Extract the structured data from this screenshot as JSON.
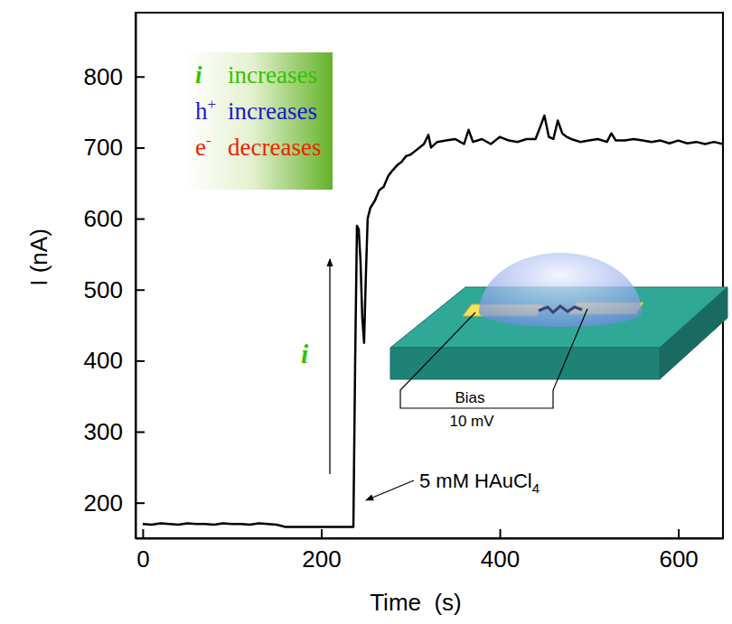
{
  "chart_data": {
    "type": "line",
    "xlabel": "Time  (s)",
    "ylabel": "I (nA)",
    "xlim": [
      -8,
      650
    ],
    "ylim": [
      150,
      890
    ],
    "xticks": [
      0,
      200,
      400,
      600
    ],
    "yticks": [
      200,
      300,
      400,
      500,
      600,
      700,
      800
    ],
    "x": [
      0,
      10,
      20,
      30,
      40,
      50,
      60,
      70,
      80,
      90,
      100,
      110,
      120,
      130,
      140,
      150,
      160,
      170,
      180,
      190,
      200,
      210,
      220,
      230,
      236,
      238,
      240,
      242,
      244,
      246,
      248,
      250,
      252,
      255,
      260,
      265,
      270,
      275,
      280,
      285,
      290,
      295,
      300,
      305,
      310,
      315,
      320,
      323,
      330,
      340,
      350,
      360,
      365,
      370,
      380,
      390,
      400,
      410,
      420,
      430,
      440,
      445,
      450,
      455,
      460,
      465,
      470,
      475,
      480,
      490,
      500,
      510,
      520,
      525,
      530,
      540,
      550,
      560,
      570,
      580,
      590,
      600,
      610,
      620,
      630,
      640,
      650
    ],
    "series": [
      {
        "color": "#000000",
        "line_style": "solid",
        "values": [
          170,
          169,
          171,
          170,
          169,
          171,
          170,
          170,
          169,
          171,
          170,
          170,
          169,
          171,
          170,
          169,
          166,
          166,
          166,
          166,
          166,
          166,
          166,
          166,
          166,
          400,
          590,
          585,
          540,
          460,
          425,
          520,
          600,
          615,
          625,
          640,
          645,
          660,
          668,
          675,
          680,
          688,
          690,
          695,
          700,
          705,
          718,
          700,
          708,
          710,
          712,
          705,
          725,
          708,
          712,
          705,
          715,
          710,
          708,
          712,
          712,
          728,
          745,
          715,
          712,
          738,
          720,
          715,
          712,
          708,
          710,
          712,
          708,
          720,
          710,
          710,
          712,
          710,
          708,
          710,
          706,
          710,
          706,
          708,
          705,
          708,
          705
        ]
      }
    ],
    "annotations": {
      "box": [
        {
          "symbol": "i",
          "text": "increases",
          "color": "#33c200"
        },
        {
          "symbol": "h",
          "sup": "+",
          "text": "increases",
          "color": "#1a1acc"
        },
        {
          "symbol": "e",
          "sup": "-",
          "text": "decreases",
          "color": "#ee2200"
        }
      ],
      "arrow_label": "i",
      "injection": {
        "text": "5 mM HAuCl",
        "sub": "4"
      },
      "inset": {
        "label": "Bias",
        "bias": "10 mV"
      }
    }
  }
}
